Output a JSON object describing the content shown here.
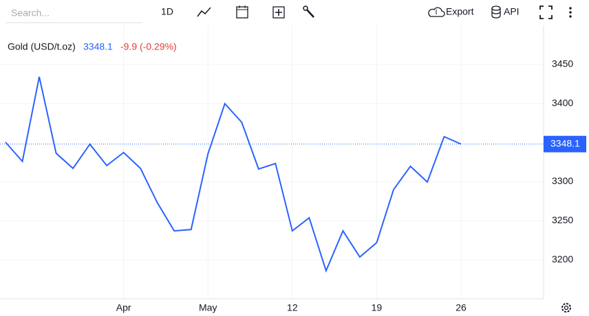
{
  "toolbar": {
    "search_placeholder": "Search...",
    "interval": "1D",
    "export": "Export",
    "api": "API"
  },
  "chart_data": {
    "type": "line",
    "title": "Gold (USD/t.oz)",
    "change": "-9.9 (-0.29%)",
    "change_color": "#e53935",
    "categories": [
      null,
      null,
      null,
      null,
      null,
      null,
      null,
      "Apr",
      null,
      null,
      null,
      null,
      "May",
      null,
      null,
      null,
      null,
      "12",
      null,
      null,
      null,
      null,
      "19",
      null,
      null,
      null,
      null,
      "26"
    ],
    "series": [
      {
        "name": "Gold",
        "color": "#2962ff",
        "values": [
          3350.5,
          3325.9,
          3434.2,
          3336.4,
          3317.0,
          3347.9,
          3320.6,
          3337.3,
          3317.0,
          3273.0,
          3237.0,
          3238.7,
          3335.6,
          3399.8,
          3376.0,
          3316.2,
          3323.2,
          3237.0,
          3253.7,
          3185.9,
          3237.0,
          3203.5,
          3222.0,
          3289.8,
          3319.7,
          3299.5,
          3357.6,
          3348.1
        ]
      }
    ],
    "ylim": [
      3150,
      3500
    ],
    "yticks": [
      3200,
      3250,
      3300,
      3400,
      3450
    ],
    "grid": true
  }
}
